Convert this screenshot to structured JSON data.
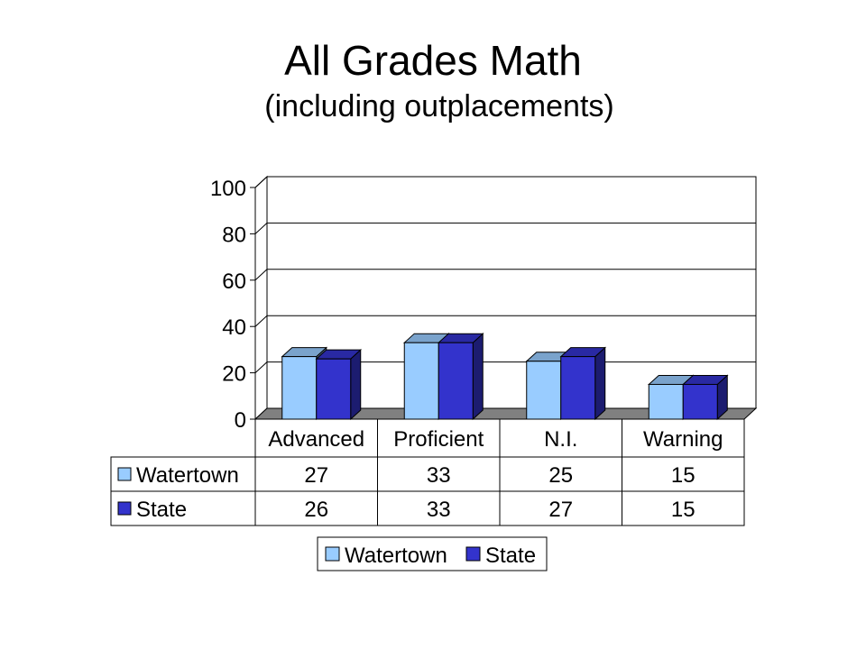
{
  "title": "All Grades Math",
  "subtitle": "(including outplacements)",
  "chart_data": {
    "type": "bar",
    "categories": [
      "Advanced",
      "Proficient",
      "N.I.",
      "Warning"
    ],
    "series": [
      {
        "name": "Watertown",
        "values": [
          27,
          33,
          25,
          15
        ],
        "color": "#99ccff"
      },
      {
        "name": "State",
        "values": [
          26,
          33,
          27,
          15
        ],
        "color": "#3333cc"
      }
    ],
    "y_ticks": [
      "0",
      "20",
      "40",
      "60",
      "80",
      "100"
    ],
    "ylim": [
      0,
      100
    ],
    "grid": true,
    "legend": "bottom",
    "data_table": true,
    "table_rows": [
      {
        "label": "Watertown",
        "cells": [
          "27",
          "33",
          "25",
          "15"
        ]
      },
      {
        "label": "State",
        "cells": [
          "26",
          "33",
          "27",
          "15"
        ]
      }
    ],
    "legend_labels": [
      "Watertown",
      "State"
    ]
  }
}
